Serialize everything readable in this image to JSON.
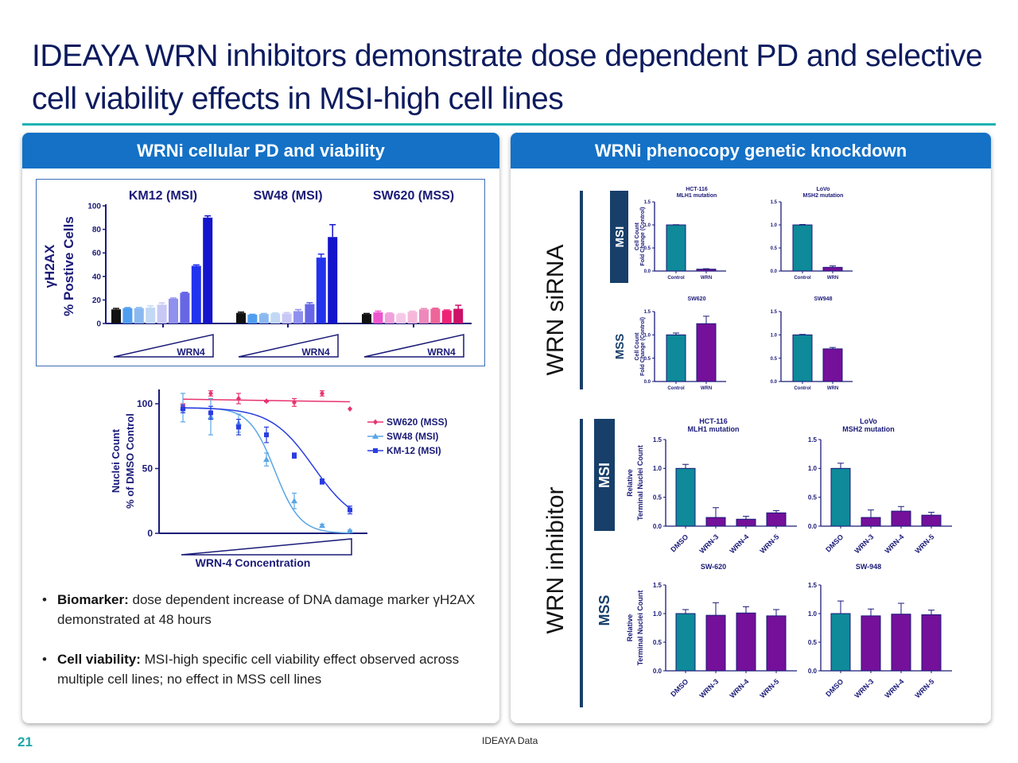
{
  "title": "IDEAYA WRN inhibitors demonstrate dose dependent PD and selective cell viability effects in MSI-high cell lines",
  "left_panel": {
    "header": "WRNi cellular PD and viability",
    "bullets": [
      {
        "bold": "Biomarker:",
        "text": " dose dependent increase of DNA damage marker γH2AX demonstrated at 48 hours"
      },
      {
        "bold": "Cell viability:",
        "text": " MSI-high specific cell viability effect observed across multiple cell lines; no effect in MSS cell lines"
      }
    ]
  },
  "right_panel": {
    "header": "WRNi phenocopy genetic knockdown",
    "section_sirna": "WRN siRNA",
    "section_inhibitor": "WRN inhibitor",
    "msi_label": "MSI",
    "mss_label": "MSS"
  },
  "footer": {
    "page_number": "21",
    "source": "IDEAYA Data"
  },
  "colors": {
    "header_blue": "#1471c6",
    "title_navy": "#0d1b5e",
    "teal_rule": "#1fb2b2",
    "control_bar": "#0e8a9a",
    "wrn_bar": "#74109a",
    "dark_box": "#173f6a"
  },
  "chart_data": [
    {
      "type": "bar",
      "ylabel": [
        "γH2AX",
        "% Postive Cells"
      ],
      "ylim": [
        0,
        100
      ],
      "yticks": [
        "0",
        "20",
        "40",
        "60",
        "80",
        "100"
      ],
      "panels": [
        {
          "title": "KM12 (MSI)",
          "dose_label": "WRN4",
          "values": [
            12,
            13,
            13,
            13.5,
            16,
            21,
            26,
            49,
            90
          ],
          "errors": [
            0.8,
            0.5,
            0.6,
            1.5,
            1.5,
            0.6,
            0.5,
            0.8,
            1.5
          ],
          "colors": [
            "#111111",
            "#4f9ef0",
            "#8ab9f0",
            "#c2d8f5",
            "#c8c8f5",
            "#9090ee",
            "#6767e6",
            "#2233ee",
            "#1414cc"
          ]
        },
        {
          "title": "SW48 (MSI)",
          "dose_label": "WRN4",
          "values": [
            9,
            7.5,
            8,
            8.5,
            8.5,
            10.5,
            16.5,
            56,
            73.5
          ],
          "errors": [
            0.7,
            0.3,
            0.5,
            0.5,
            0.8,
            1.3,
            1.2,
            3,
            10.5
          ],
          "colors": [
            "#111111",
            "#4f9ef0",
            "#8ab9f0",
            "#c2d8f5",
            "#c8c8f5",
            "#9090ee",
            "#6767e6",
            "#2233ee",
            "#1414cc"
          ]
        },
        {
          "title": "SW620 (MSS)",
          "dose_label": "WRN4",
          "values": [
            8,
            9.5,
            8.5,
            8,
            10,
            12,
            12.5,
            11,
            12.5
          ],
          "errors": [
            0.5,
            1,
            0.5,
            0.5,
            0.5,
            0.7,
            0.5,
            0.5,
            3
          ],
          "colors": [
            "#111111",
            "#ee55cc",
            "#f0a0dc",
            "#f5c8e8",
            "#f5b8da",
            "#ee88bb",
            "#ee6699",
            "#ee2277",
            "#cc1166"
          ]
        }
      ]
    },
    {
      "type": "line",
      "xlabel": "WRN-4 Concentration",
      "ylabel": [
        "Nuclei Count",
        "% of DMSO Control"
      ],
      "ylim": [
        0,
        110
      ],
      "yticks": [
        "0",
        "50",
        "100"
      ],
      "legend": "right",
      "series": [
        {
          "name": "SW620 (MSS)",
          "color": "#e8336e",
          "marker": "diamond",
          "values": [
            98,
            108,
            104,
            102,
            101,
            108,
            96
          ],
          "errors": [
            2,
            2,
            4,
            0.5,
            3,
            2,
            0
          ]
        },
        {
          "name": "SW48 (MSI)",
          "color": "#5aa6e6",
          "marker": "triangle",
          "values": [
            97,
            90,
            85,
            57,
            25,
            6,
            2
          ],
          "errors": [
            11,
            14,
            7,
            5,
            6,
            1,
            0.5
          ]
        },
        {
          "name": "KM-12 (MSI)",
          "color": "#2b3de0",
          "marker": "square",
          "values": [
            96,
            93,
            82,
            76,
            60,
            40,
            18
          ],
          "errors": [
            3,
            5,
            6,
            6,
            2,
            2,
            3
          ]
        }
      ]
    },
    {
      "type": "bar",
      "ylabel": [
        "Cell Count",
        "Fold Change (Control)"
      ],
      "ylim": [
        0,
        1.5
      ],
      "yticks": [
        "0.0",
        "0.5",
        "1.0",
        "1.5"
      ],
      "categories": [
        "Control",
        "WRN"
      ],
      "panels": [
        {
          "title": "HCT-116",
          "subtitle": "MLH1 mutation",
          "values": [
            1.0,
            0.04
          ],
          "errors": [
            0.005,
            0.01
          ]
        },
        {
          "title": "LoVo",
          "subtitle": "MSH2 mutation",
          "values": [
            1.0,
            0.08
          ],
          "errors": [
            0.01,
            0.03
          ]
        },
        {
          "title": "SW620",
          "subtitle": "",
          "values": [
            1.0,
            1.24
          ],
          "errors": [
            0.04,
            0.16
          ]
        },
        {
          "title": "SW948",
          "subtitle": "",
          "values": [
            1.0,
            0.7
          ],
          "errors": [
            0.01,
            0.03
          ]
        }
      ]
    },
    {
      "type": "bar",
      "ylabel": [
        "Relative",
        "Terminal Nuclei Count"
      ],
      "ylim": [
        0,
        1.5
      ],
      "yticks": [
        "0.0",
        "0.5",
        "1.0",
        "1.5"
      ],
      "categories": [
        "DMSO",
        "WRN-3",
        "WRN-4",
        "WRN-5"
      ],
      "panels": [
        {
          "title": "HCT-116",
          "subtitle": "MLH1 mutation",
          "values": [
            1.0,
            0.15,
            0.12,
            0.23
          ],
          "errors": [
            0.07,
            0.17,
            0.05,
            0.04
          ]
        },
        {
          "title": "LoVo",
          "subtitle": "MSH2 mutation",
          "values": [
            1.0,
            0.15,
            0.26,
            0.19
          ],
          "errors": [
            0.09,
            0.13,
            0.08,
            0.05
          ]
        },
        {
          "title": "SW-620",
          "subtitle": "",
          "values": [
            1.0,
            0.97,
            1.01,
            0.96
          ],
          "errors": [
            0.07,
            0.22,
            0.11,
            0.11
          ]
        },
        {
          "title": "SW-948",
          "subtitle": "",
          "values": [
            1.0,
            0.96,
            0.99,
            0.98
          ],
          "errors": [
            0.22,
            0.12,
            0.19,
            0.08
          ]
        }
      ]
    }
  ]
}
